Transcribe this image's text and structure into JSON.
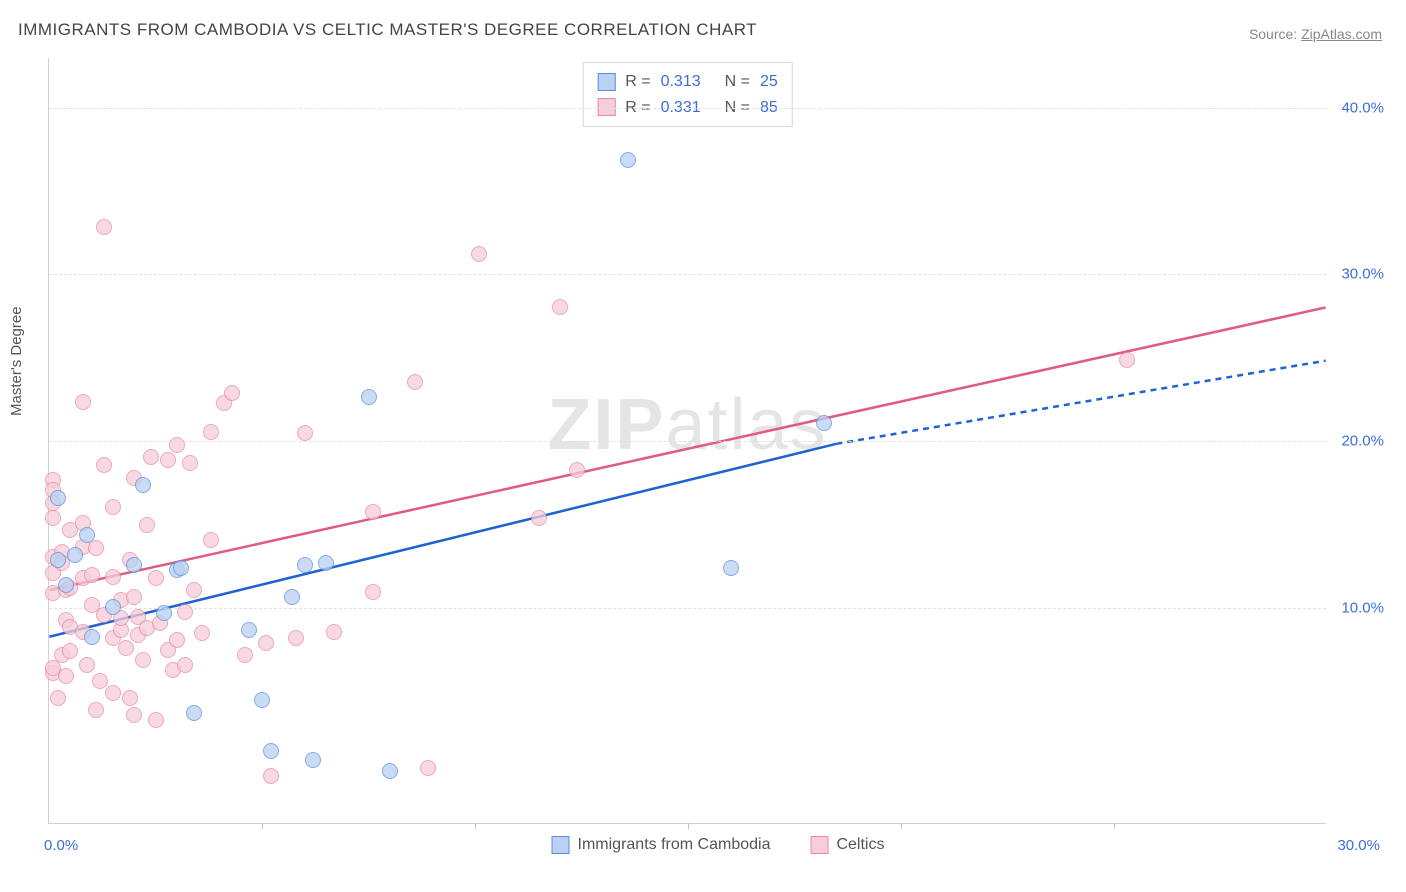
{
  "title": "IMMIGRANTS FROM CAMBODIA VS CELTIC MASTER'S DEGREE CORRELATION CHART",
  "source_prefix": "Source: ",
  "source_name": "ZipAtlas.com",
  "ylabel": "Master's Degree",
  "watermark_a": "ZIP",
  "watermark_b": "atlas",
  "colors": {
    "series1_fill": "#b9d1f2",
    "series1_stroke": "#5a8fe0",
    "series1_line": "#1e63d0",
    "series2_fill": "#f6cdd8",
    "series2_stroke": "#e88ba5",
    "series2_line": "#e05b7e",
    "axis_text": "#3b6fd6",
    "grid": "#e2e2e2"
  },
  "axes": {
    "xmin": 0,
    "xmax": 30,
    "ymin": -3,
    "ymax": 43,
    "yticks": [
      10,
      20,
      30,
      40
    ],
    "ytick_labels": [
      "10.0%",
      "20.0%",
      "30.0%",
      "40.0%"
    ],
    "xticks": [
      5,
      10,
      15,
      20,
      25
    ],
    "xmin_label": "0.0%",
    "xmax_label": "30.0%"
  },
  "stats": {
    "r_label": "R =",
    "n_label": "N =",
    "rows": [
      {
        "swatch": "series1",
        "r": "0.313",
        "n": "25"
      },
      {
        "swatch": "series2",
        "r": "0.331",
        "n": "85"
      }
    ]
  },
  "legend": [
    {
      "swatch": "series1",
      "label": "Immigrants from Cambodia"
    },
    {
      "swatch": "series2",
      "label": "Celtics"
    }
  ],
  "trend_lines": {
    "series1": {
      "x1": 0,
      "y1": 8.2,
      "x2": 18.5,
      "y2": 19.8,
      "ext_x2": 30,
      "ext_y2": 24.8
    },
    "series2": {
      "x1": 0,
      "y1": 11.0,
      "x2": 30,
      "y2": 28.0
    }
  },
  "series1_points": [
    {
      "x": 0.2,
      "y": 16.5
    },
    {
      "x": 0.2,
      "y": 12.8
    },
    {
      "x": 0.4,
      "y": 11.3
    },
    {
      "x": 0.6,
      "y": 13.1
    },
    {
      "x": 0.9,
      "y": 14.3
    },
    {
      "x": 1.0,
      "y": 8.2
    },
    {
      "x": 1.5,
      "y": 10.0
    },
    {
      "x": 2.0,
      "y": 12.5
    },
    {
      "x": 2.2,
      "y": 17.3
    },
    {
      "x": 2.7,
      "y": 9.6
    },
    {
      "x": 3.0,
      "y": 12.2
    },
    {
      "x": 3.1,
      "y": 12.3
    },
    {
      "x": 3.4,
      "y": 3.6
    },
    {
      "x": 4.7,
      "y": 8.6
    },
    {
      "x": 5.0,
      "y": 4.4
    },
    {
      "x": 5.2,
      "y": 1.3
    },
    {
      "x": 5.7,
      "y": 10.6
    },
    {
      "x": 6.0,
      "y": 12.5
    },
    {
      "x": 6.2,
      "y": 0.8
    },
    {
      "x": 6.5,
      "y": 12.6
    },
    {
      "x": 7.5,
      "y": 22.6
    },
    {
      "x": 8.0,
      "y": 0.1
    },
    {
      "x": 13.6,
      "y": 36.8
    },
    {
      "x": 16.0,
      "y": 12.3
    },
    {
      "x": 18.2,
      "y": 21.0
    }
  ],
  "series2_points": [
    {
      "x": 0.1,
      "y": 17.6
    },
    {
      "x": 0.1,
      "y": 17.0
    },
    {
      "x": 0.1,
      "y": 16.2
    },
    {
      "x": 0.1,
      "y": 15.3
    },
    {
      "x": 0.1,
      "y": 13.0
    },
    {
      "x": 0.1,
      "y": 12.0
    },
    {
      "x": 0.1,
      "y": 10.8
    },
    {
      "x": 0.1,
      "y": 6.0
    },
    {
      "x": 0.1,
      "y": 6.3
    },
    {
      "x": 0.2,
      "y": 4.5
    },
    {
      "x": 0.3,
      "y": 7.1
    },
    {
      "x": 0.3,
      "y": 13.3
    },
    {
      "x": 0.3,
      "y": 12.6
    },
    {
      "x": 0.4,
      "y": 11.0
    },
    {
      "x": 0.4,
      "y": 9.2
    },
    {
      "x": 0.4,
      "y": 5.8
    },
    {
      "x": 0.5,
      "y": 11.1
    },
    {
      "x": 0.5,
      "y": 14.6
    },
    {
      "x": 0.5,
      "y": 8.8
    },
    {
      "x": 0.5,
      "y": 7.3
    },
    {
      "x": 0.8,
      "y": 22.3
    },
    {
      "x": 0.8,
      "y": 15.0
    },
    {
      "x": 0.8,
      "y": 13.6
    },
    {
      "x": 0.8,
      "y": 11.7
    },
    {
      "x": 0.8,
      "y": 8.5
    },
    {
      "x": 0.9,
      "y": 6.5
    },
    {
      "x": 1.0,
      "y": 10.1
    },
    {
      "x": 1.0,
      "y": 11.9
    },
    {
      "x": 1.1,
      "y": 13.5
    },
    {
      "x": 1.1,
      "y": 3.8
    },
    {
      "x": 1.3,
      "y": 32.8
    },
    {
      "x": 1.3,
      "y": 18.5
    },
    {
      "x": 1.3,
      "y": 9.5
    },
    {
      "x": 1.5,
      "y": 16.0
    },
    {
      "x": 1.5,
      "y": 11.8
    },
    {
      "x": 1.5,
      "y": 8.1
    },
    {
      "x": 1.5,
      "y": 4.8
    },
    {
      "x": 1.7,
      "y": 10.4
    },
    {
      "x": 1.7,
      "y": 8.6
    },
    {
      "x": 1.7,
      "y": 9.3
    },
    {
      "x": 1.8,
      "y": 7.5
    },
    {
      "x": 1.9,
      "y": 12.8
    },
    {
      "x": 1.9,
      "y": 4.5
    },
    {
      "x": 2.0,
      "y": 17.7
    },
    {
      "x": 2.0,
      "y": 10.6
    },
    {
      "x": 2.0,
      "y": 3.5
    },
    {
      "x": 2.1,
      "y": 9.4
    },
    {
      "x": 2.1,
      "y": 8.3
    },
    {
      "x": 2.2,
      "y": 6.8
    },
    {
      "x": 2.3,
      "y": 14.9
    },
    {
      "x": 2.3,
      "y": 8.7
    },
    {
      "x": 2.4,
      "y": 19.0
    },
    {
      "x": 2.5,
      "y": 11.7
    },
    {
      "x": 2.5,
      "y": 3.2
    },
    {
      "x": 2.6,
      "y": 9.0
    },
    {
      "x": 2.8,
      "y": 18.8
    },
    {
      "x": 2.8,
      "y": 7.4
    },
    {
      "x": 2.9,
      "y": 6.2
    },
    {
      "x": 3.0,
      "y": 19.7
    },
    {
      "x": 3.0,
      "y": 8.0
    },
    {
      "x": 3.2,
      "y": 9.7
    },
    {
      "x": 3.2,
      "y": 6.5
    },
    {
      "x": 3.3,
      "y": 18.6
    },
    {
      "x": 3.4,
      "y": 11.0
    },
    {
      "x": 3.6,
      "y": 8.4
    },
    {
      "x": 3.8,
      "y": 20.5
    },
    {
      "x": 3.8,
      "y": 14.0
    },
    {
      "x": 4.1,
      "y": 22.2
    },
    {
      "x": 4.3,
      "y": 22.8
    },
    {
      "x": 4.6,
      "y": 7.1
    },
    {
      "x": 5.1,
      "y": 7.8
    },
    {
      "x": 5.2,
      "y": -0.2
    },
    {
      "x": 5.8,
      "y": 8.1
    },
    {
      "x": 6.0,
      "y": 20.4
    },
    {
      "x": 6.7,
      "y": 8.5
    },
    {
      "x": 7.6,
      "y": 15.7
    },
    {
      "x": 7.6,
      "y": 10.9
    },
    {
      "x": 8.6,
      "y": 23.5
    },
    {
      "x": 8.9,
      "y": 0.3
    },
    {
      "x": 10.1,
      "y": 31.2
    },
    {
      "x": 11.5,
      "y": 15.3
    },
    {
      "x": 12.0,
      "y": 28.0
    },
    {
      "x": 12.4,
      "y": 18.2
    },
    {
      "x": 25.3,
      "y": 24.8
    },
    {
      "x": 1.2,
      "y": 5.5
    }
  ]
}
